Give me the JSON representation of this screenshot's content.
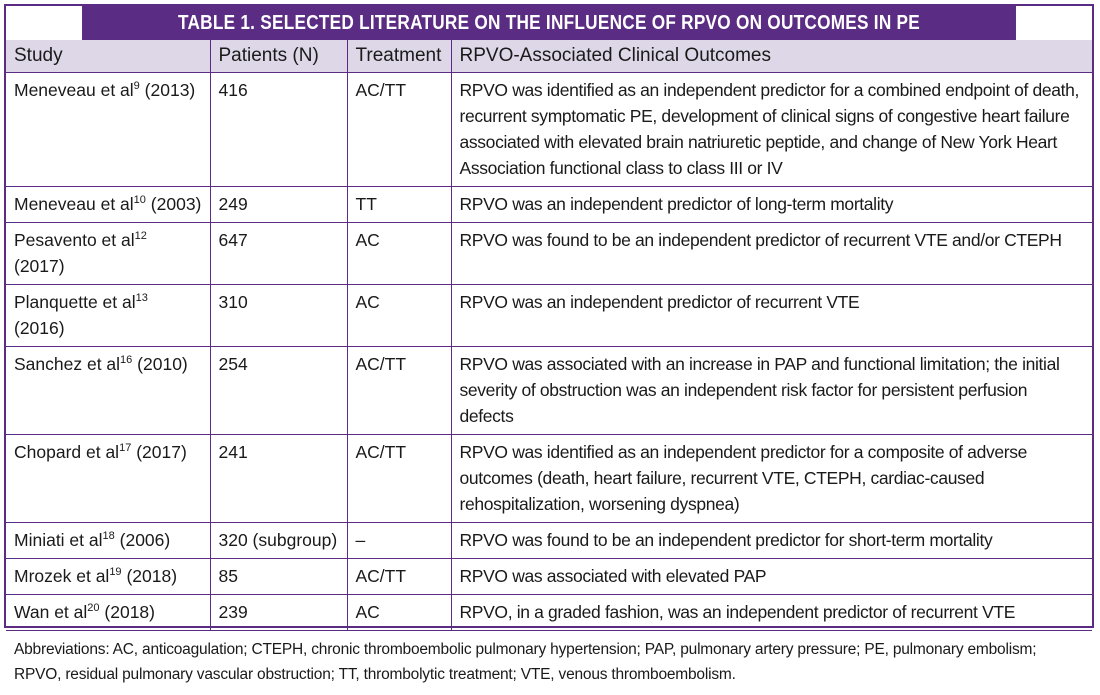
{
  "title": "TABLE 1.  SELECTED LITERATURE ON THE INFLUENCE OF RPVO ON OUTCOMES IN PE",
  "headers": {
    "study": "Study",
    "patients": "Patients (N)",
    "treatment": "Treatment",
    "outcomes": "RPVO-Associated Clinical Outcomes"
  },
  "rows": [
    {
      "author": "Meneveau et al",
      "ref": "9",
      "year": "(2013)",
      "patients": "416",
      "treatment": "AC/TT",
      "outcome": "RPVO was identified as an independent predictor for a combined endpoint of death, recurrent symptomatic PE, development of clinical signs of congestive heart failure associated with elevated brain natriuretic peptide, and change of New York Heart Association functional class to class III or IV"
    },
    {
      "author": "Meneveau et al",
      "ref": "10",
      "year": "(2003)",
      "patients": "249",
      "treatment": "TT",
      "outcome": "RPVO was an independent predictor of long-term mortality"
    },
    {
      "author": "Pesavento et al",
      "ref": "12",
      "year": "(2017)",
      "patients": "647",
      "treatment": "AC",
      "outcome": "RPVO was found to be an independent predictor of recurrent VTE and/or CTEPH"
    },
    {
      "author": "Planquette et al",
      "ref": "13",
      "year": "(2016)",
      "patients": "310",
      "treatment": "AC",
      "outcome": "RPVO was an independent predictor of recurrent VTE"
    },
    {
      "author": "Sanchez et al",
      "ref": "16",
      "year": "(2010)",
      "patients": "254",
      "treatment": "AC/TT",
      "outcome": "RPVO was associated with an increase in PAP and functional limitation; the initial severity of obstruction was an independent risk factor for persistent perfusion defects"
    },
    {
      "author": "Chopard et al",
      "ref": "17",
      "year": "(2017)",
      "patients": "241",
      "treatment": "AC/TT",
      "outcome": "RPVO was identified as an independent predictor for a composite of adverse outcomes (death, heart failure, recurrent VTE, CTEPH, cardiac-caused rehospitalization, worsening dyspnea)"
    },
    {
      "author": "Miniati et al",
      "ref": "18",
      "year": "(2006)",
      "patients": "320 (subgroup)",
      "treatment": "–",
      "outcome": "RPVO was found to be an independent predictor for short-term mortality"
    },
    {
      "author": "Mrozek et al",
      "ref": "19",
      "year": "(2018)",
      "patients": "85",
      "treatment": "AC/TT",
      "outcome": "RPVO was associated with elevated PAP"
    },
    {
      "author": "Wan et al",
      "ref": "20",
      "year": "(2018)",
      "patients": "239",
      "treatment": "AC",
      "outcome": "RPVO, in a graded fashion, was an independent predictor of recurrent VTE"
    }
  ],
  "footnote": "Abbreviations: AC, anticoagulation; CTEPH, chronic thromboembolic pulmonary hypertension; PAP, pulmonary artery pressure; PE, pulmonary embolism; RPVO, residual pulmonary vascular obstruction; TT, thrombolytic treatment; VTE, venous thromboembolism.",
  "colors": {
    "accent": "#5b2c83",
    "header_bg": "#ded7e7"
  }
}
